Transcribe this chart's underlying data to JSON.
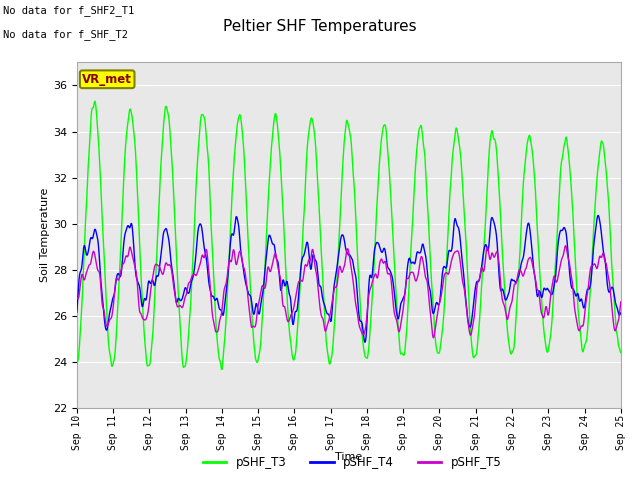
{
  "title": "Peltier SHF Temperatures",
  "xlabel": "Time",
  "ylabel": "Soil Temperature",
  "annotations": [
    "No data for f_SHF2_T1",
    "No data for f_SHF_T2"
  ],
  "vr_met_label": "VR_met",
  "ylim": [
    22,
    37
  ],
  "yticks": [
    22,
    24,
    26,
    28,
    30,
    32,
    34,
    36
  ],
  "xtick_labels": [
    "Sep 10",
    "Sep 11",
    "Sep 12",
    "Sep 13",
    "Sep 14",
    "Sep 15",
    "Sep 16",
    "Sep 17",
    "Sep 18",
    "Sep 19",
    "Sep 20",
    "Sep 21",
    "Sep 22",
    "Sep 23",
    "Sep 24",
    "Sep 25"
  ],
  "legend": [
    {
      "label": "pSHF_T3",
      "color": "#00ff00"
    },
    {
      "label": "pSHF_T4",
      "color": "#0000ff"
    },
    {
      "label": "pSHF_T5",
      "color": "#cc00cc"
    }
  ],
  "background_color": "#e8e8e8",
  "outer_bg": "#ffffff",
  "grid_color": "#ffffff",
  "title_fontsize": 11,
  "axis_fontsize": 8,
  "line_width": 1.0
}
